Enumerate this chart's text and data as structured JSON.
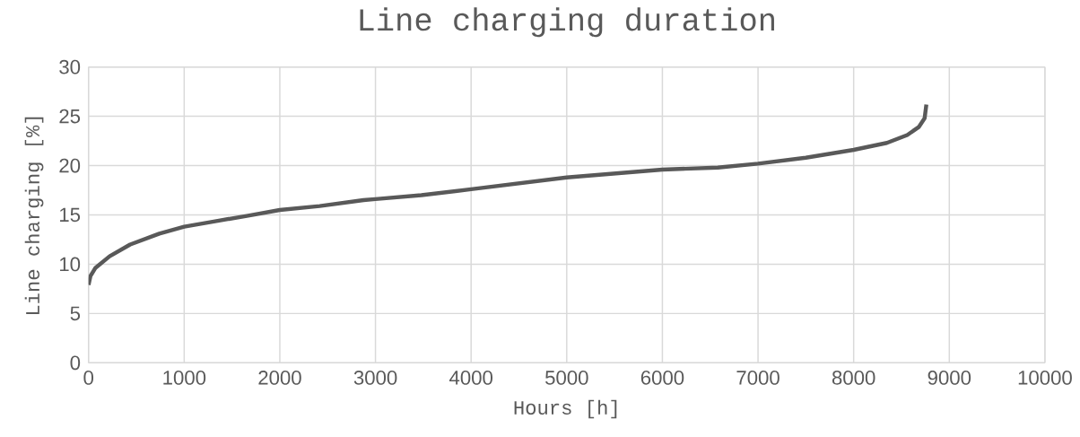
{
  "chart_data": {
    "type": "line",
    "title": "Line charging duration",
    "xlabel": "Hours [h]",
    "ylabel": "Line charging [%]",
    "x": [
      0,
      20,
      70,
      220,
      435,
      740,
      1000,
      1350,
      1655,
      2000,
      2417,
      2875,
      3000,
      3480,
      4000,
      4500,
      5000,
      5500,
      6000,
      6580,
      7000,
      7500,
      8000,
      8347,
      8560,
      8680,
      8742,
      8760
    ],
    "series": [
      {
        "color": "#595959",
        "values": [
          7.9,
          8.8,
          9.6,
          10.8,
          12.0,
          13.1,
          13.8,
          14.4,
          14.9,
          15.5,
          15.9,
          16.5,
          16.6,
          17.0,
          17.6,
          18.2,
          18.8,
          19.2,
          19.6,
          19.8,
          20.2,
          20.8,
          21.6,
          22.3,
          23.1,
          23.9,
          24.8,
          26.2
        ]
      }
    ],
    "xlim": [
      0,
      10000
    ],
    "ylim": [
      0,
      30
    ],
    "xticks": [
      0,
      1000,
      2000,
      3000,
      4000,
      5000,
      6000,
      7000,
      8000,
      9000,
      10000
    ],
    "yticks": [
      0,
      5,
      10,
      15,
      20,
      25,
      30
    ],
    "grid": true,
    "marker": "none",
    "line_style": "solid"
  }
}
